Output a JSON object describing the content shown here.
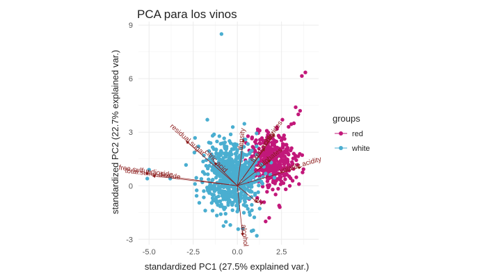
{
  "chart_data": {
    "type": "scatter",
    "title": "PCA para los vinos",
    "xlabel": "standardized PC1 (27.5% explained var.)",
    "ylabel": "standardized PC2 (22.7% explained var.)",
    "xlim": [
      -5.6,
      4.6
    ],
    "ylim": [
      -3.3,
      9.2
    ],
    "x_ticks": [
      -5.0,
      -2.5,
      0.0,
      2.5
    ],
    "x_tick_labels": [
      "-5.0",
      "-2.5",
      "0.0",
      "2.5"
    ],
    "y_ticks": [
      -3,
      0,
      3,
      6,
      9
    ],
    "y_tick_labels": [
      "-3",
      "0",
      "3",
      "6",
      "9"
    ],
    "grid": true,
    "legend": {
      "title": "groups",
      "position": "right"
    },
    "series": [
      {
        "name": "red",
        "color": "#c2187a",
        "cloud": {
          "cx": 1.9,
          "cy": 1.4,
          "sx": 0.65,
          "sy": 0.75,
          "n": 420
        },
        "points": [
          [
            3.85,
            6.35
          ],
          [
            3.65,
            6.15
          ],
          [
            3.3,
            4.4
          ],
          [
            3.55,
            4.2
          ],
          [
            3.45,
            4.0
          ],
          [
            3.05,
            3.45
          ],
          [
            2.9,
            3.3
          ],
          [
            3.2,
            3.5
          ],
          [
            2.55,
            3.7
          ],
          [
            1.8,
            -1.8
          ],
          [
            1.6,
            -2.0
          ],
          [
            2.4,
            -1.2
          ]
        ]
      },
      {
        "name": "white",
        "color": "#4aaed0",
        "cloud": {
          "cx": -0.3,
          "cy": 0.5,
          "sx": 0.75,
          "sy": 0.95,
          "n": 700
        },
        "points": [
          [
            -0.9,
            8.5
          ],
          [
            -5.1,
            0.4
          ],
          [
            -5.0,
            0.9
          ],
          [
            -3.8,
            0.4
          ],
          [
            -2.4,
            0.1
          ],
          [
            -1.9,
            -0.3
          ],
          [
            -1.7,
            3.7
          ],
          [
            -1.4,
            2.8
          ],
          [
            -0.4,
            -2.2
          ],
          [
            0.3,
            -2.4
          ],
          [
            0.9,
            -2.5
          ],
          [
            1.1,
            -2.8
          ],
          [
            -2.2,
            2.2
          ]
        ]
      }
    ],
    "loadings": [
      {
        "label": "fixed.acidity",
        "x": 1.55,
        "y": 2.1
      },
      {
        "label": "volatile.acidity",
        "x": 3.6,
        "y": 1.05
      },
      {
        "label": "citric.acid",
        "x": -1.3,
        "y": 1.3
      },
      {
        "label": "residual.sugar",
        "x": -2.9,
        "y": 2.5
      },
      {
        "label": "chlorides",
        "x": 2.1,
        "y": 2.9
      },
      {
        "label": "free.sulfur.dioxide",
        "x": -5.2,
        "y": 0.7
      },
      {
        "label": "total.sulfur.dioxide",
        "x": -4.8,
        "y": 0.55
      },
      {
        "label": "density",
        "x": 0.35,
        "y": 2.6
      },
      {
        "label": "pH",
        "x": 1.15,
        "y": -0.95
      },
      {
        "label": "sulphates",
        "x": 1.9,
        "y": 1.45
      },
      {
        "label": "alcohol",
        "x": 0.3,
        "y": -2.8
      }
    ]
  }
}
